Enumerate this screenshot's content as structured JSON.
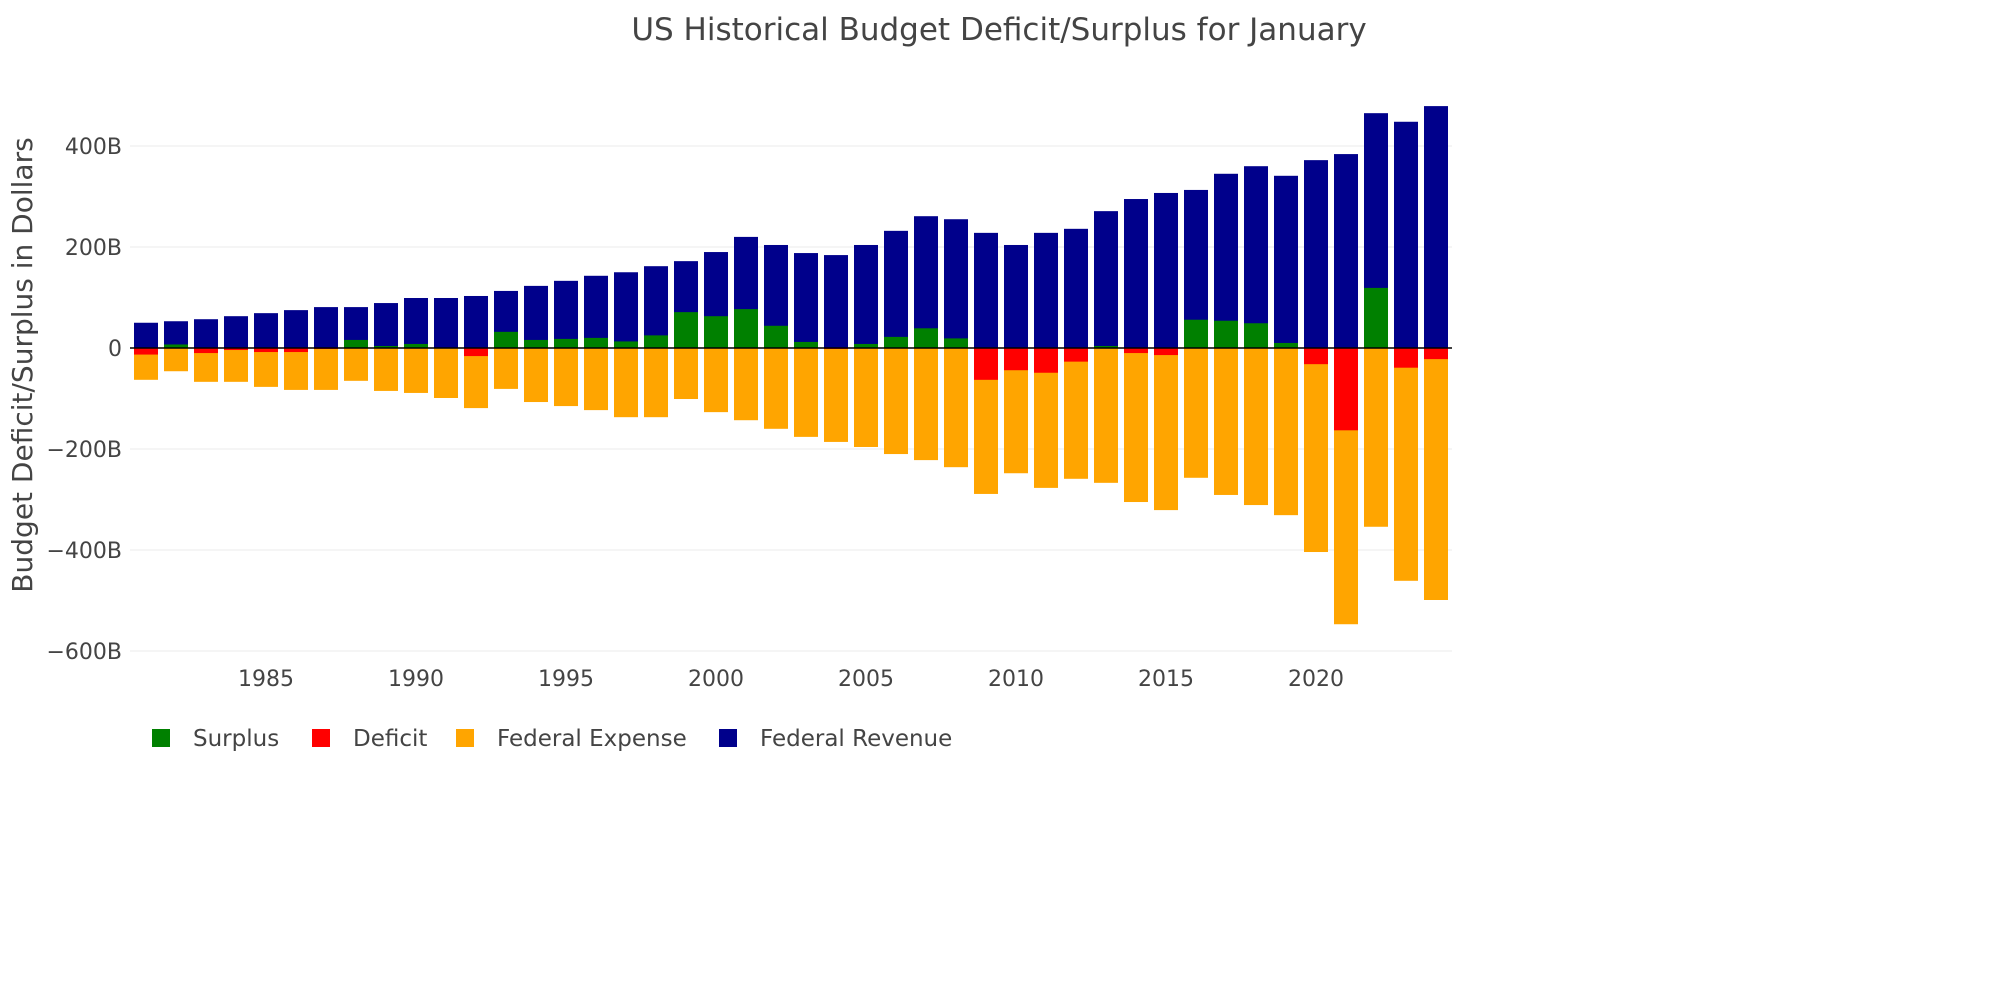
{
  "chart_data": {
    "type": "bar",
    "title": "US Historical Budget Deficit/Surplus for January",
    "xlabel": "",
    "ylabel": "Budget Deficit/Surplus in Dollars",
    "ylim": [
      -620,
      510
    ],
    "y_unit": "billions USD",
    "y_ticks": [
      400,
      200,
      0,
      -200,
      -400,
      -600
    ],
    "y_tick_labels": [
      "400B",
      "200B",
      "0",
      "−200B",
      "−400B",
      "−600B"
    ],
    "x_ticks": [
      1985,
      1990,
      1995,
      2000,
      2005,
      2010,
      2015,
      2020
    ],
    "x_tick_labels": [
      "1985",
      "1990",
      "1995",
      "2000",
      "2005",
      "2010",
      "2015",
      "2020"
    ],
    "grid": true,
    "barmode": "overlay",
    "legend_position": "bottom-left",
    "categories": [
      1981,
      1982,
      1983,
      1984,
      1985,
      1986,
      1987,
      1988,
      1989,
      1990,
      1991,
      1992,
      1993,
      1994,
      1995,
      1996,
      1997,
      1998,
      1999,
      2000,
      2001,
      2002,
      2003,
      2004,
      2005,
      2006,
      2007,
      2008,
      2009,
      2010,
      2011,
      2012,
      2013,
      2014,
      2015,
      2016,
      2017,
      2018,
      2019,
      2020,
      2021,
      2022,
      2023,
      2024
    ],
    "series": [
      {
        "name": "Federal Revenue",
        "color": "#00008b",
        "values": [
          50,
          53,
          57,
          63,
          69,
          75,
          81,
          81,
          89,
          99,
          99,
          103,
          113,
          123,
          133,
          143,
          150,
          162,
          172,
          190,
          220,
          204,
          188,
          184,
          204,
          232,
          261,
          255,
          228,
          204,
          228,
          236,
          271,
          295,
          307,
          313,
          345,
          360,
          341,
          372,
          384,
          465,
          448,
          479
        ]
      },
      {
        "name": "Federal Expense",
        "color": "#ffa500",
        "values": [
          -63,
          -46,
          -67,
          -67,
          -77,
          -83,
          -83,
          -65,
          -85,
          -89,
          -99,
          -119,
          -81,
          -107,
          -115,
          -123,
          -137,
          -137,
          -101,
          -127,
          -143,
          -160,
          -176,
          -186,
          -196,
          -210,
          -222,
          -236,
          -289,
          -248,
          -277,
          -259,
          -267,
          -305,
          -321,
          -257,
          -291,
          -311,
          -331,
          -404,
          -547,
          -354,
          -461,
          -499
        ]
      },
      {
        "name": "Surplus",
        "color": "#008000",
        "values": [
          0,
          7,
          0,
          0,
          0,
          0,
          0,
          16,
          4,
          8,
          1,
          0,
          32,
          16,
          18,
          20,
          13,
          25,
          71,
          63,
          77,
          44,
          12,
          0,
          8,
          22,
          39,
          19,
          0,
          0,
          0,
          0,
          4,
          0,
          0,
          56,
          54,
          49,
          10,
          0,
          0,
          119,
          0,
          0
        ]
      },
      {
        "name": "Deficit",
        "color": "#ff0000",
        "values": [
          -13,
          0,
          -10,
          -4,
          -8,
          -8,
          -2,
          0,
          0,
          0,
          0,
          -16,
          0,
          0,
          0,
          0,
          0,
          0,
          0,
          0,
          0,
          0,
          0,
          -2,
          0,
          0,
          0,
          0,
          -63,
          -44,
          -49,
          -27,
          0,
          -10,
          -14,
          0,
          0,
          0,
          0,
          -32,
          -163,
          0,
          -39,
          -22
        ]
      }
    ],
    "legend": [
      {
        "label": "Surplus",
        "color": "#008000"
      },
      {
        "label": "Deficit",
        "color": "#ff0000"
      },
      {
        "label": "Federal Expense",
        "color": "#ffa500"
      },
      {
        "label": "Federal Revenue",
        "color": "#00008b"
      }
    ]
  }
}
